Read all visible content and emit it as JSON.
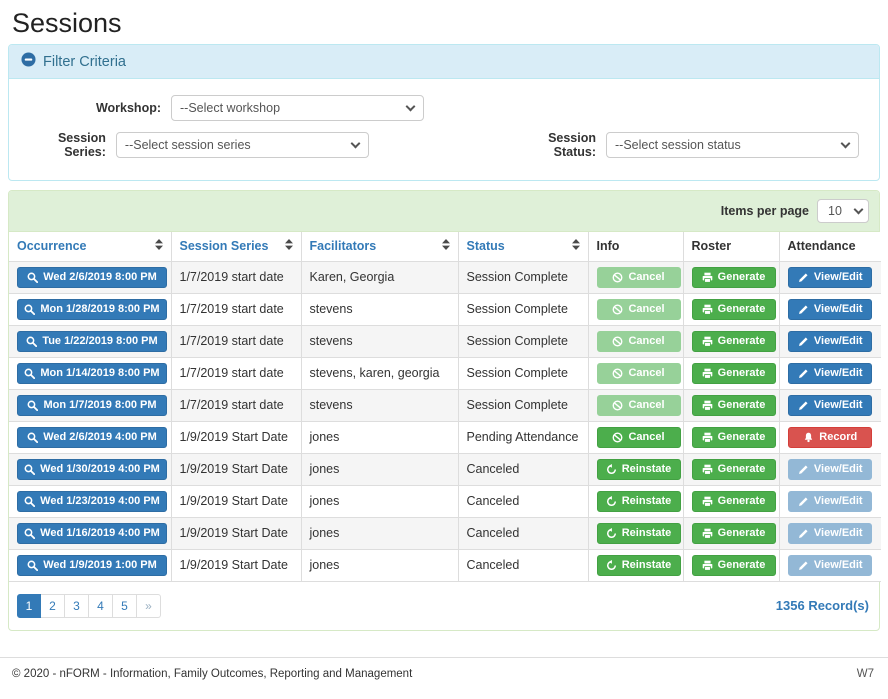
{
  "page": {
    "title": "Sessions"
  },
  "colors": {
    "accent_blue": "#337ab7",
    "success_green": "#4cae4c",
    "danger_red": "#d9534f",
    "filter_header_bg": "#d9edf7",
    "table_header_bg": "#dff0d8"
  },
  "filter": {
    "title": "Filter Criteria",
    "collapse_icon": "minus-circle-icon",
    "workshop_label": "Workshop:",
    "workshop_value": "--Select workshop",
    "session_series_label": "Session Series:",
    "session_series_value": "--Select session series",
    "session_status_label": "Session Status:",
    "session_status_value": "--Select session status"
  },
  "table": {
    "items_per_page_label": "Items per page",
    "items_per_page_value": "10",
    "columns": [
      {
        "label": "Occurrence",
        "sortable": true
      },
      {
        "label": "Session Series",
        "sortable": true
      },
      {
        "label": "Facilitators",
        "sortable": true
      },
      {
        "label": "Status",
        "sortable": true
      },
      {
        "label": "Info",
        "sortable": false
      },
      {
        "label": "Roster",
        "sortable": false
      },
      {
        "label": "Attendance",
        "sortable": false
      }
    ],
    "rows": [
      {
        "occurrence": "Wed 2/6/2019 8:00 PM",
        "session_series": "1/7/2019 start date",
        "facilitators": "Karen, Georgia",
        "status": "Session Complete",
        "info": {
          "label": "Cancel",
          "icon": "ban-icon",
          "style": "success",
          "disabled": true
        },
        "roster": {
          "label": "Generate",
          "icon": "printer-icon",
          "style": "success",
          "disabled": false
        },
        "attendance": {
          "label": "View/Edit",
          "icon": "pencil-icon",
          "style": "primary",
          "disabled": false
        }
      },
      {
        "occurrence": "Mon 1/28/2019 8:00 PM",
        "session_series": "1/7/2019 start date",
        "facilitators": "stevens",
        "status": "Session Complete",
        "info": {
          "label": "Cancel",
          "icon": "ban-icon",
          "style": "success",
          "disabled": true
        },
        "roster": {
          "label": "Generate",
          "icon": "printer-icon",
          "style": "success",
          "disabled": false
        },
        "attendance": {
          "label": "View/Edit",
          "icon": "pencil-icon",
          "style": "primary",
          "disabled": false
        }
      },
      {
        "occurrence": "Tue 1/22/2019 8:00 PM",
        "session_series": "1/7/2019 start date",
        "facilitators": "stevens",
        "status": "Session Complete",
        "info": {
          "label": "Cancel",
          "icon": "ban-icon",
          "style": "success",
          "disabled": true
        },
        "roster": {
          "label": "Generate",
          "icon": "printer-icon",
          "style": "success",
          "disabled": false
        },
        "attendance": {
          "label": "View/Edit",
          "icon": "pencil-icon",
          "style": "primary",
          "disabled": false
        }
      },
      {
        "occurrence": "Mon 1/14/2019 8:00 PM",
        "session_series": "1/7/2019 start date",
        "facilitators": "stevens, karen, georgia",
        "status": "Session Complete",
        "info": {
          "label": "Cancel",
          "icon": "ban-icon",
          "style": "success",
          "disabled": true
        },
        "roster": {
          "label": "Generate",
          "icon": "printer-icon",
          "style": "success",
          "disabled": false
        },
        "attendance": {
          "label": "View/Edit",
          "icon": "pencil-icon",
          "style": "primary",
          "disabled": false
        }
      },
      {
        "occurrence": "Mon 1/7/2019 8:00 PM",
        "session_series": "1/7/2019 start date",
        "facilitators": "stevens",
        "status": "Session Complete",
        "info": {
          "label": "Cancel",
          "icon": "ban-icon",
          "style": "success",
          "disabled": true
        },
        "roster": {
          "label": "Generate",
          "icon": "printer-icon",
          "style": "success",
          "disabled": false
        },
        "attendance": {
          "label": "View/Edit",
          "icon": "pencil-icon",
          "style": "primary",
          "disabled": false
        }
      },
      {
        "occurrence": "Wed 2/6/2019 4:00 PM",
        "session_series": "1/9/2019 Start Date",
        "facilitators": "jones",
        "status": "Pending Attendance",
        "info": {
          "label": "Cancel",
          "icon": "ban-icon",
          "style": "success",
          "disabled": false
        },
        "roster": {
          "label": "Generate",
          "icon": "printer-icon",
          "style": "success",
          "disabled": false
        },
        "attendance": {
          "label": "Record",
          "icon": "bell-icon",
          "style": "danger",
          "disabled": false
        }
      },
      {
        "occurrence": "Wed 1/30/2019 4:00 PM",
        "session_series": "1/9/2019 Start Date",
        "facilitators": "jones",
        "status": "Canceled",
        "info": {
          "label": "Reinstate",
          "icon": "undo-icon",
          "style": "success",
          "disabled": false
        },
        "roster": {
          "label": "Generate",
          "icon": "printer-icon",
          "style": "success",
          "disabled": false
        },
        "attendance": {
          "label": "View/Edit",
          "icon": "pencil-icon",
          "style": "primary",
          "disabled": true
        }
      },
      {
        "occurrence": "Wed 1/23/2019 4:00 PM",
        "session_series": "1/9/2019 Start Date",
        "facilitators": "jones",
        "status": "Canceled",
        "info": {
          "label": "Reinstate",
          "icon": "undo-icon",
          "style": "success",
          "disabled": false
        },
        "roster": {
          "label": "Generate",
          "icon": "printer-icon",
          "style": "success",
          "disabled": false
        },
        "attendance": {
          "label": "View/Edit",
          "icon": "pencil-icon",
          "style": "primary",
          "disabled": true
        }
      },
      {
        "occurrence": "Wed 1/16/2019 4:00 PM",
        "session_series": "1/9/2019 Start Date",
        "facilitators": "jones",
        "status": "Canceled",
        "info": {
          "label": "Reinstate",
          "icon": "undo-icon",
          "style": "success",
          "disabled": false
        },
        "roster": {
          "label": "Generate",
          "icon": "printer-icon",
          "style": "success",
          "disabled": false
        },
        "attendance": {
          "label": "View/Edit",
          "icon": "pencil-icon",
          "style": "primary",
          "disabled": true
        }
      },
      {
        "occurrence": "Wed 1/9/2019 1:00 PM",
        "session_series": "1/9/2019 Start Date",
        "facilitators": "jones",
        "status": "Canceled",
        "info": {
          "label": "Reinstate",
          "icon": "undo-icon",
          "style": "success",
          "disabled": false
        },
        "roster": {
          "label": "Generate",
          "icon": "printer-icon",
          "style": "success",
          "disabled": false
        },
        "attendance": {
          "label": "View/Edit",
          "icon": "pencil-icon",
          "style": "primary",
          "disabled": true
        }
      }
    ]
  },
  "pagination": {
    "pages": [
      "1",
      "2",
      "3",
      "4",
      "5",
      "»"
    ],
    "active_page": "1",
    "record_count": "1356 Record(s)"
  },
  "footer": {
    "copyright": "© 2020 - nFORM - Information, Family Outcomes, Reporting and Management",
    "version_label": "W7"
  }
}
